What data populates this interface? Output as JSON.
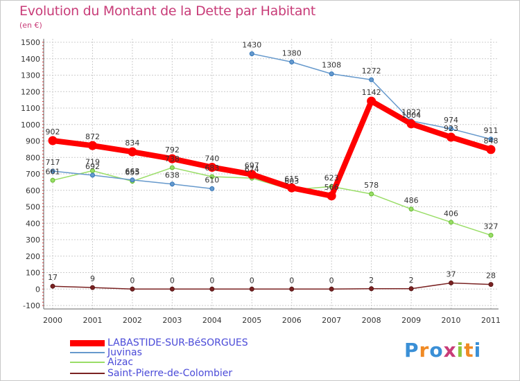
{
  "chart_data": {
    "type": "line",
    "title": "Evolution du Montant de la Dette par Habitant",
    "subtitle": "(en €)",
    "xlabel": "",
    "ylabel": "",
    "ylim": [
      -100,
      1500
    ],
    "yticks": [
      "-100",
      "0",
      "100",
      "200",
      "300",
      "400",
      "500",
      "600",
      "700",
      "800",
      "900",
      "1000",
      "1100",
      "1200",
      "1300",
      "1400",
      "1500"
    ],
    "categories": [
      "2000",
      "2001",
      "2002",
      "2003",
      "2004",
      "2005",
      "2006",
      "2007",
      "2008",
      "2009",
      "2010",
      "2011"
    ],
    "grid": true,
    "legend_position": "bottom-left",
    "series": [
      {
        "name": "LABASTIDE-SUR-BéSORGUES",
        "color": "#ff0000",
        "values": [
          902,
          872,
          834,
          792,
          740,
          697,
          615,
          566,
          1142,
          1004,
          923,
          848
        ],
        "labels": [
          "902",
          "872",
          "834",
          "792",
          "740",
          "697",
          "615",
          "566",
          "1142",
          "1004",
          "923",
          "848"
        ]
      },
      {
        "name": "Juvinas",
        "color": "#6699cc",
        "values": [
          717,
          692,
          663,
          638,
          610,
          1430,
          1380,
          1308,
          1272,
          1022,
          974,
          911
        ],
        "labels": [
          "717",
          "692",
          "663",
          "638",
          "610",
          "1430",
          "1380",
          "1308",
          "1272",
          "1022",
          "974",
          "911"
        ]
      },
      {
        "name": "Aizac",
        "color": "#99dd66",
        "values": [
          661,
          719,
          655,
          738,
          683,
          674,
          603,
          623,
          578,
          486,
          406,
          327
        ],
        "labels": [
          "661",
          "719",
          "655",
          "738",
          "683",
          "674",
          "603",
          "623",
          "578",
          "486",
          "406",
          "327"
        ]
      },
      {
        "name": "Saint-Pierre-de-Colombier",
        "color": "#7a2222",
        "values": [
          17,
          9,
          0,
          0,
          0,
          0,
          0,
          0,
          2,
          2,
          37,
          28
        ],
        "labels": [
          "17",
          "9",
          "0",
          "0",
          "0",
          "0",
          "0",
          "0",
          "2",
          "2",
          "37",
          "28"
        ]
      }
    ]
  },
  "logo": {
    "text": "Proxiti"
  }
}
